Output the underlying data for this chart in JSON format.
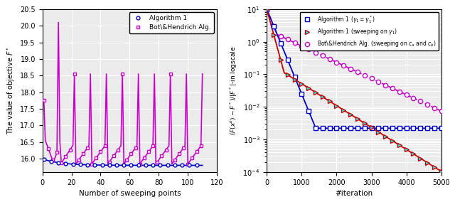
{
  "left_xlabel": "Number of sweeping points",
  "left_ylabel": "The value of objective $F^*$",
  "left_xlim": [
    0,
    120
  ],
  "left_ylim": [
    15.6,
    20.5
  ],
  "left_yticks": [
    16.0,
    16.5,
    17.0,
    17.5,
    18.0,
    18.5,
    19.0,
    19.5,
    20.0,
    20.5
  ],
  "left_xticks": [
    0,
    20,
    40,
    60,
    80,
    100,
    120
  ],
  "right_xlabel": "#iteration",
  "right_ylabel": "$(F(x^k) - F^*)/|F^*|$-in logscale",
  "right_xlim": [
    0,
    5000
  ],
  "right_xticks": [
    0,
    1000,
    2000,
    3000,
    4000,
    5000
  ],
  "algo1_color": "#0000cc",
  "algo1_sweep_color": "#cc0000",
  "bot_sweep_color": "#cc00cc",
  "left_algo1_color": "#0000cc",
  "left_bot_color": "#cc00cc",
  "bg_color": "#ebebeb",
  "grid_color": "#ffffff"
}
